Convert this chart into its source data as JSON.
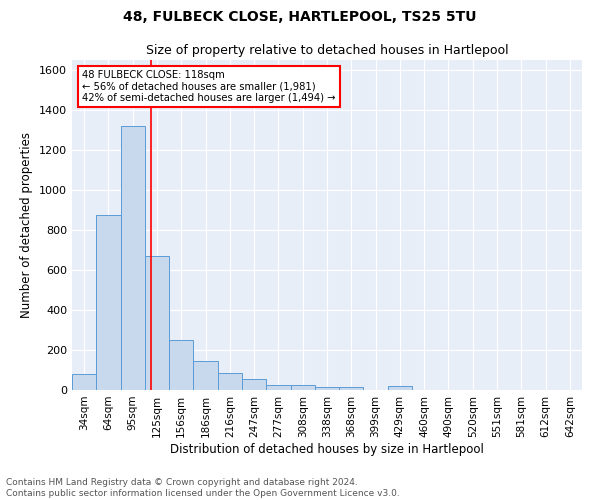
{
  "title1": "48, FULBECK CLOSE, HARTLEPOOL, TS25 5TU",
  "title2": "Size of property relative to detached houses in Hartlepool",
  "xlabel": "Distribution of detached houses by size in Hartlepool",
  "ylabel": "Number of detached properties",
  "categories": [
    "34sqm",
    "64sqm",
    "95sqm",
    "125sqm",
    "156sqm",
    "186sqm",
    "216sqm",
    "247sqm",
    "277sqm",
    "308sqm",
    "338sqm",
    "368sqm",
    "399sqm",
    "429sqm",
    "460sqm",
    "490sqm",
    "520sqm",
    "551sqm",
    "581sqm",
    "612sqm",
    "642sqm"
  ],
  "values": [
    80,
    875,
    1320,
    670,
    248,
    145,
    85,
    55,
    25,
    25,
    15,
    15,
    0,
    20,
    0,
    0,
    0,
    0,
    0,
    0,
    0
  ],
  "bar_color": "#c9d9ed",
  "bar_edge_color": "#5b9bd5",
  "vline_x": 2.75,
  "vline_color": "red",
  "annotation_line1": "48 FULBECK CLOSE: 118sqm",
  "annotation_line2": "← 56% of detached houses are smaller (1,981)",
  "annotation_line3": "42% of semi-detached houses are larger (1,494) →",
  "annotation_box_color": "white",
  "annotation_box_edgecolor": "red",
  "ylim": [
    0,
    1650
  ],
  "yticks": [
    0,
    200,
    400,
    600,
    800,
    1000,
    1200,
    1400,
    1600
  ],
  "footnote": "Contains HM Land Registry data © Crown copyright and database right 2024.\nContains public sector information licensed under the Open Government Licence v3.0.",
  "bg_color": "#e8eef8",
  "title1_fontsize": 10,
  "title2_fontsize": 9,
  "xlabel_fontsize": 8.5,
  "ylabel_fontsize": 8.5,
  "footnote_fontsize": 6.5
}
